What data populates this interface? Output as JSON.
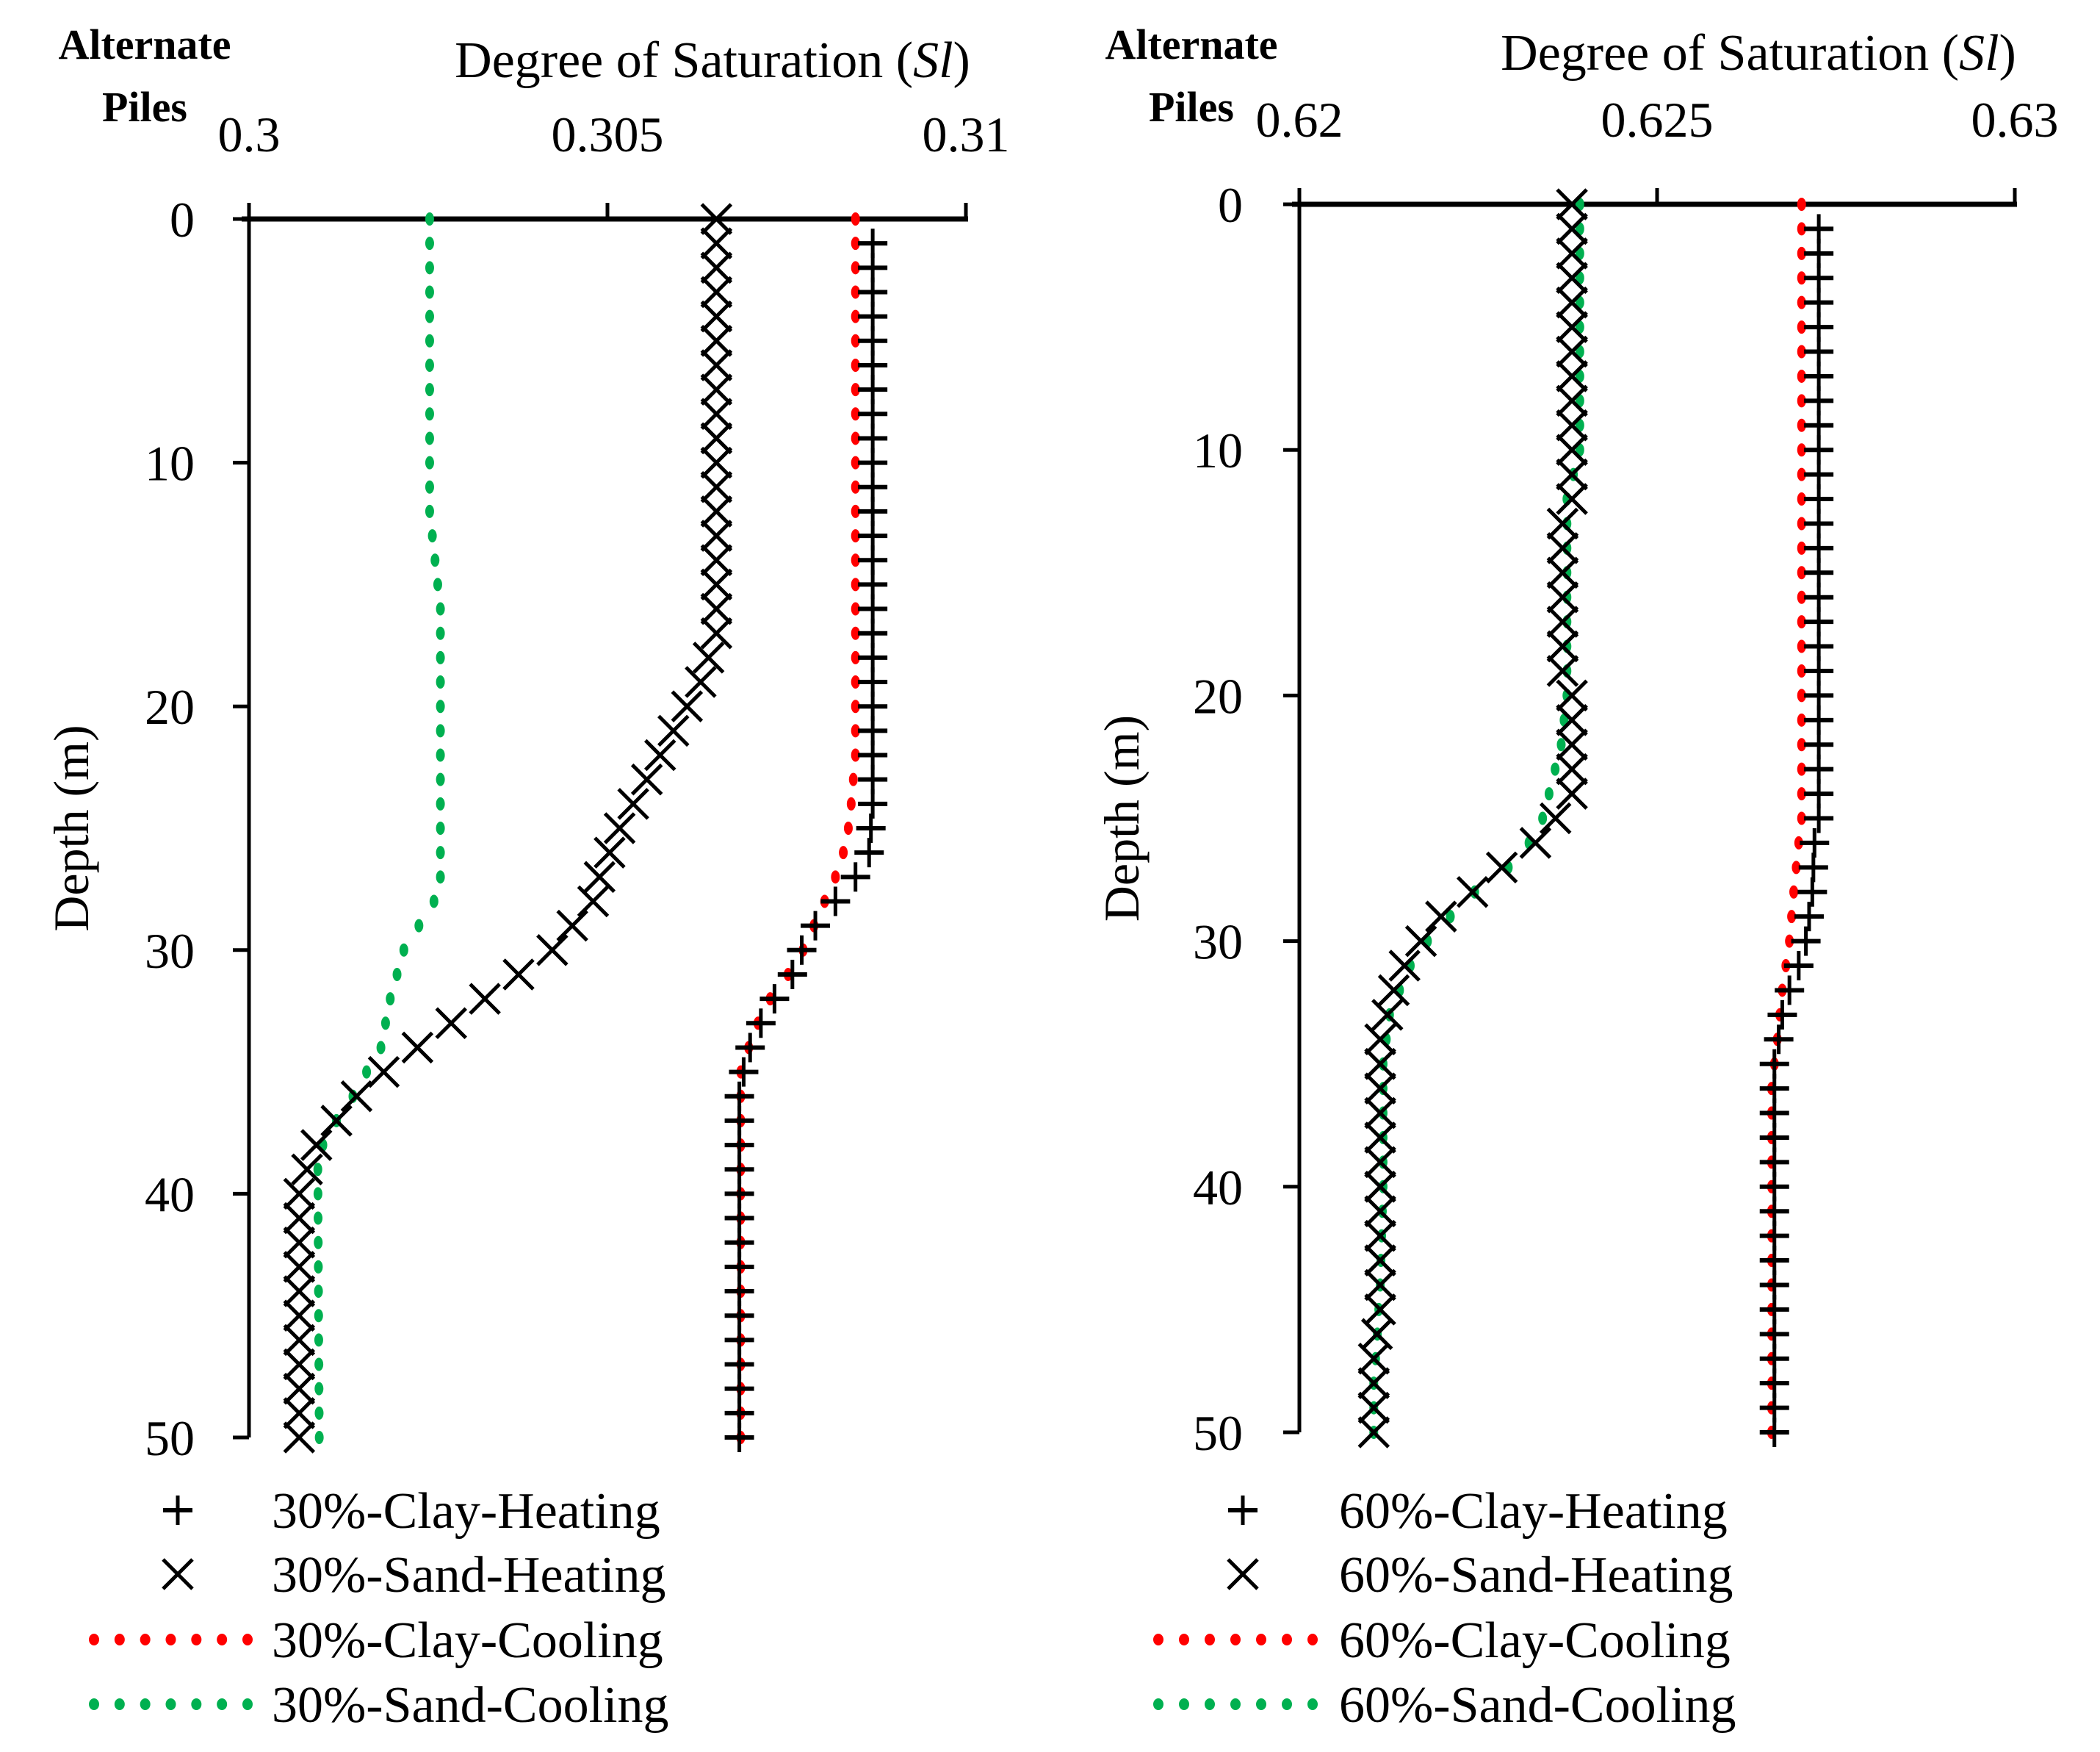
{
  "chart_data": [
    {
      "type": "scatter",
      "panel_label": [
        "Alternate",
        "Piles"
      ],
      "title": "Degree of Saturation (",
      "title_symbol": "Sl",
      "title_close": ")",
      "xlabel": "Degree of Saturation (Sl)",
      "ylabel": "Depth (m)",
      "xlim": [
        0.3,
        0.31
      ],
      "ylim": [
        0,
        50
      ],
      "xticks": [
        "0.3",
        "0.305",
        "0.31"
      ],
      "xtick_values": [
        0.3,
        0.305,
        0.31
      ],
      "yticks": [
        "0",
        "10",
        "20",
        "30",
        "40",
        "50"
      ],
      "ytick_values": [
        0,
        10,
        20,
        30,
        40,
        50
      ],
      "legend_position": "bottom",
      "series": [
        {
          "name": "30%-Clay-Heating",
          "marker": "plus",
          "color": "#000000",
          "depth": [
            0,
            24,
            26,
            27,
            28,
            29,
            30,
            31,
            32,
            33,
            34,
            35,
            36,
            50
          ],
          "value": [
            0.3087,
            0.3087,
            0.30865,
            0.30846,
            0.30818,
            0.3079,
            0.30771,
            0.30758,
            0.30733,
            0.30714,
            0.30699,
            0.3069,
            0.30684,
            0.30684
          ]
        },
        {
          "name": "30%-Sand-Heating",
          "marker": "x",
          "color": "#000000",
          "depth": [
            0,
            17,
            19,
            21,
            23,
            25,
            27,
            28,
            29,
            30,
            31,
            32,
            33,
            34,
            35,
            36,
            37,
            38,
            39,
            40,
            50
          ],
          "value": [
            0.30652,
            0.30652,
            0.3063,
            0.30592,
            0.30555,
            0.30517,
            0.30489,
            0.3048,
            0.30451,
            0.30423,
            0.30376,
            0.30329,
            0.30282,
            0.30235,
            0.30188,
            0.3015,
            0.30122,
            0.30094,
            0.30081,
            0.3007,
            0.3007
          ]
        },
        {
          "name": "30%-Clay-Cooling",
          "marker": "dot",
          "color": "#ff0000",
          "depth": [
            0,
            22,
            24,
            25,
            26,
            27,
            28,
            29,
            30,
            31,
            32,
            33,
            34,
            35,
            50
          ],
          "value": [
            0.30846,
            0.30846,
            0.3084,
            0.30836,
            0.30829,
            0.30818,
            0.30803,
            0.30788,
            0.30773,
            0.30752,
            0.30727,
            0.3071,
            0.30697,
            0.30686,
            0.30686
          ]
        },
        {
          "name": "30%-Sand-Cooling",
          "marker": "dot",
          "color": "#00b050",
          "depth": [
            0,
            12,
            16,
            27,
            28,
            30,
            32,
            34,
            35,
            36,
            37,
            38,
            39,
            50
          ],
          "value": [
            0.30252,
            0.30252,
            0.30267,
            0.30267,
            0.30258,
            0.30216,
            0.30197,
            0.30184,
            0.30164,
            0.30145,
            0.30122,
            0.30103,
            0.30096,
            0.30098
          ]
        }
      ]
    },
    {
      "type": "scatter",
      "panel_label": [
        "Alternate",
        "Piles"
      ],
      "title": "Degree of Saturation (",
      "title_symbol": "Sl",
      "title_close": ")",
      "xlabel": "Degree of Saturation (Sl)",
      "ylabel": "Depth (m)",
      "xlim": [
        0.62,
        0.63
      ],
      "ylim": [
        0,
        50
      ],
      "xticks": [
        "0.62",
        "0.625",
        "0.63"
      ],
      "xtick_values": [
        0.62,
        0.625,
        0.63
      ],
      "yticks": [
        "0",
        "10",
        "20",
        "30",
        "40",
        "50"
      ],
      "ytick_values": [
        0,
        10,
        20,
        30,
        40,
        50
      ],
      "legend_position": "bottom",
      "series": [
        {
          "name": "60%-Clay-Heating",
          "marker": "plus",
          "color": "#000000",
          "depth": [
            0,
            25,
            26,
            28,
            30,
            31,
            32,
            33,
            34,
            35,
            50
          ],
          "value": [
            0.62726,
            0.62726,
            0.6272,
            0.62717,
            0.62708,
            0.62698,
            0.62685,
            0.62675,
            0.6267,
            0.62664,
            0.62664
          ]
        },
        {
          "name": "60%-Sand-Heating",
          "marker": "x",
          "color": "#000000",
          "depth": [
            0,
            12,
            13,
            19,
            20,
            24,
            25,
            26,
            27,
            28,
            29,
            30,
            31,
            32,
            33,
            34,
            45,
            47,
            50
          ],
          "value": [
            0.62381,
            0.62381,
            0.62368,
            0.62368,
            0.62381,
            0.62381,
            0.62358,
            0.6233,
            0.62283,
            0.62242,
            0.62198,
            0.6217,
            0.62147,
            0.62132,
            0.62123,
            0.62113,
            0.62113,
            0.62104,
            0.62104
          ]
        },
        {
          "name": "60%-Clay-Cooling",
          "marker": "dot",
          "color": "#ff0000",
          "depth": [
            0,
            25,
            26,
            28,
            30,
            32,
            34,
            36,
            50
          ],
          "value": [
            0.62702,
            0.62702,
            0.62698,
            0.62691,
            0.62685,
            0.62675,
            0.62668,
            0.6266,
            0.6266
          ]
        },
        {
          "name": "60%-Sand-Cooling",
          "marker": "dot",
          "color": "#00b050",
          "depth": [
            0,
            10,
            12,
            20,
            22,
            24,
            25,
            26,
            27,
            28,
            29,
            30,
            31,
            32,
            33,
            35,
            40,
            44,
            46,
            48,
            50
          ],
          "value": [
            0.62392,
            0.62392,
            0.62374,
            0.62374,
            0.62366,
            0.62349,
            0.6234,
            0.62321,
            0.62292,
            0.62245,
            0.62211,
            0.62179,
            0.62155,
            0.6214,
            0.62126,
            0.62117,
            0.62117,
            0.62113,
            0.62109,
            0.62104,
            0.62104
          ]
        }
      ]
    }
  ]
}
